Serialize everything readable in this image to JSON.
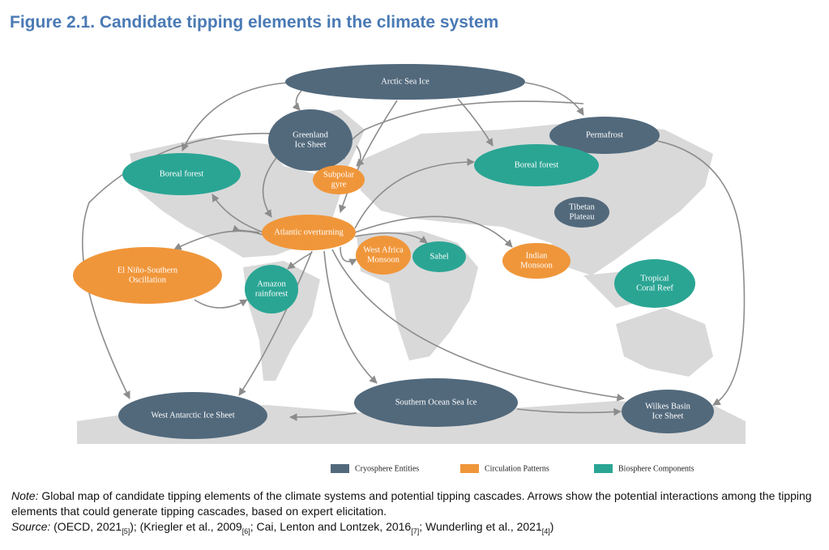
{
  "title": "Figure 2.1. Candidate tipping elements in the climate system",
  "nodes": [
    {
      "lines": [
        "Arctic Sea Ice"
      ],
      "color": "#52697c"
    },
    {
      "lines": [
        "Greenland",
        "Ice Sheet"
      ],
      "color": "#52697c"
    },
    {
      "lines": [
        "Permafrost"
      ],
      "color": "#52697c"
    },
    {
      "lines": [
        "Boreal forest"
      ],
      "color": "#2aa594"
    },
    {
      "lines": [
        "Boreal forest"
      ],
      "color": "#2aa594"
    },
    {
      "lines": [
        "Subpolar",
        "gyre"
      ],
      "color": "#f0963a"
    },
    {
      "lines": [
        "Tibetan",
        "Plateau"
      ],
      "color": "#52697c"
    },
    {
      "lines": [
        "Atlantic overturning"
      ],
      "color": "#f0963a"
    },
    {
      "lines": [
        "West Africa",
        "Monsoon"
      ],
      "color": "#f0963a"
    },
    {
      "lines": [
        "Sahel"
      ],
      "color": "#2aa594"
    },
    {
      "lines": [
        "Indian",
        "Monsoon"
      ],
      "color": "#f0963a"
    },
    {
      "lines": [
        "El Niño-Southern",
        "Oscillation"
      ],
      "color": "#f0963a"
    },
    {
      "lines": [
        "Amazon",
        "rainforest"
      ],
      "color": "#2aa594"
    },
    {
      "lines": [
        "Tropical",
        "Coral Reef"
      ],
      "color": "#2aa594"
    },
    {
      "lines": [
        "West Antarctic Ice Sheet"
      ],
      "color": "#52697c"
    },
    {
      "lines": [
        "Southern Ocean Sea Ice"
      ],
      "color": "#52697c"
    },
    {
      "lines": [
        "Wilkes Basin",
        "Ice Sheet"
      ],
      "color": "#52697c"
    }
  ],
  "legend": [
    {
      "label": "Cryosphere Entities",
      "color": "#52697c"
    },
    {
      "label": "Circulation Patterns",
      "color": "#f0963a"
    },
    {
      "label": "Biosphere Components",
      "color": "#2aa594"
    }
  ],
  "note": {
    "label": "Note:",
    "text": "Global map of candidate tipping elements of the climate systems and potential tipping cascades. Arrows show the potential interactions among the tipping elements that could generate tipping cascades, based on expert elicitation."
  },
  "source": {
    "label": "Source:",
    "parts": [
      "(OECD, 2021",
      "[5]",
      "); (Kriegler et al., 2009",
      "[6]",
      "; Cai, Lenton and Lontzek, 2016",
      "[7]",
      "; Wunderling et al., 2021",
      "[4]",
      ")"
    ]
  }
}
